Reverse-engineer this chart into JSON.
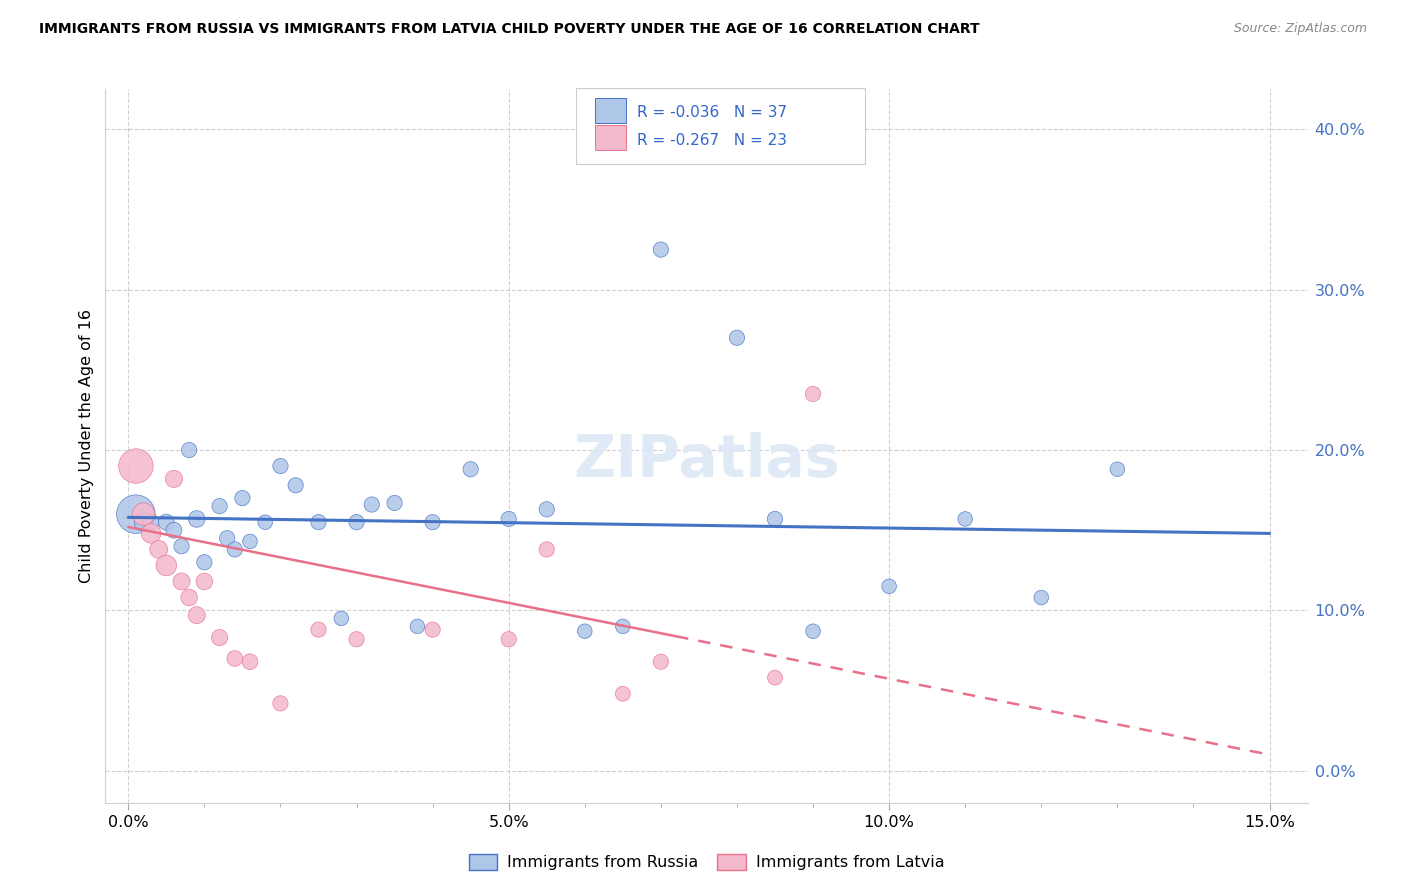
{
  "title": "IMMIGRANTS FROM RUSSIA VS IMMIGRANTS FROM LATVIA CHILD POVERTY UNDER THE AGE OF 16 CORRELATION CHART",
  "source": "Source: ZipAtlas.com",
  "xlabel_ticks": [
    "0.0%",
    "",
    "",
    "",
    "",
    "5.0%",
    "",
    "",
    "",
    "",
    "10.0%",
    "",
    "",
    "",
    "",
    "15.0%"
  ],
  "xlabel_tick_vals": [
    0.0,
    0.01,
    0.02,
    0.03,
    0.04,
    0.05,
    0.06,
    0.07,
    0.08,
    0.09,
    0.1,
    0.11,
    0.12,
    0.13,
    0.14,
    0.15
  ],
  "xlabel_major_ticks": [
    "0.0%",
    "5.0%",
    "10.0%",
    "15.0%"
  ],
  "xlabel_major_vals": [
    0.0,
    0.05,
    0.1,
    0.15
  ],
  "ylabel_ticks": [
    "0.0%",
    "10.0%",
    "20.0%",
    "30.0%",
    "40.0%"
  ],
  "ylabel_tick_vals": [
    0.0,
    0.1,
    0.2,
    0.3,
    0.4
  ],
  "ylabel": "Child Poverty Under the Age of 16",
  "legend_russia": "Immigrants from Russia",
  "legend_latvia": "Immigrants from Latvia",
  "r_russia": "-0.036",
  "n_russia": "37",
  "r_latvia": "-0.267",
  "n_latvia": "23",
  "color_russia": "#aec6e8",
  "color_latvia": "#f4b8cc",
  "line_russia": "#4472c4",
  "line_latvia": "#e8708a",
  "watermark_color": "#dde8f4",
  "russia_x": [
    0.001,
    0.002,
    0.003,
    0.005,
    0.006,
    0.007,
    0.008,
    0.009,
    0.01,
    0.012,
    0.013,
    0.014,
    0.015,
    0.016,
    0.018,
    0.02,
    0.022,
    0.025,
    0.028,
    0.03,
    0.032,
    0.035,
    0.038,
    0.04,
    0.045,
    0.05,
    0.055,
    0.06,
    0.065,
    0.07,
    0.08,
    0.085,
    0.09,
    0.1,
    0.11,
    0.12,
    0.13
  ],
  "russia_y": [
    0.16,
    0.155,
    0.155,
    0.155,
    0.15,
    0.14,
    0.2,
    0.157,
    0.13,
    0.165,
    0.145,
    0.138,
    0.17,
    0.143,
    0.155,
    0.19,
    0.178,
    0.155,
    0.095,
    0.155,
    0.166,
    0.167,
    0.09,
    0.155,
    0.188,
    0.157,
    0.163,
    0.087,
    0.09,
    0.325,
    0.27,
    0.157,
    0.087,
    0.115,
    0.157,
    0.108,
    0.188
  ],
  "russia_size": [
    350,
    80,
    60,
    60,
    60,
    55,
    55,
    65,
    55,
    55,
    55,
    55,
    55,
    50,
    50,
    55,
    55,
    55,
    50,
    55,
    55,
    55,
    50,
    55,
    55,
    55,
    55,
    50,
    50,
    55,
    55,
    55,
    50,
    50,
    50,
    50,
    50
  ],
  "latvia_x": [
    0.001,
    0.002,
    0.003,
    0.004,
    0.005,
    0.006,
    0.007,
    0.008,
    0.009,
    0.01,
    0.012,
    0.014,
    0.016,
    0.02,
    0.025,
    0.03,
    0.04,
    0.05,
    0.055,
    0.065,
    0.07,
    0.085,
    0.09
  ],
  "latvia_y": [
    0.19,
    0.16,
    0.148,
    0.138,
    0.128,
    0.182,
    0.118,
    0.108,
    0.097,
    0.118,
    0.083,
    0.07,
    0.068,
    0.042,
    0.088,
    0.082,
    0.088,
    0.082,
    0.138,
    0.048,
    0.068,
    0.058,
    0.235
  ],
  "latvia_size": [
    280,
    120,
    90,
    75,
    100,
    70,
    68,
    65,
    68,
    65,
    62,
    58,
    58,
    55,
    55,
    55,
    55,
    55,
    55,
    52,
    55,
    52,
    55
  ],
  "russia_trend": [
    0.158,
    0.148
  ],
  "latvia_trend": [
    0.152,
    0.01
  ],
  "trend_x": [
    0.0,
    0.15
  ]
}
